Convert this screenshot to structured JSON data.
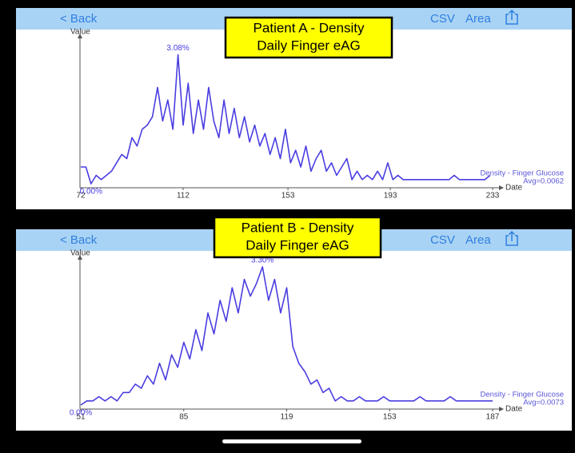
{
  "chart_data": [
    {
      "type": "line",
      "title": "Patient A - Density",
      "subtitle": "Daily Finger eAG",
      "nav": {
        "back": "< Back",
        "csv": "CSV",
        "area": "Area"
      },
      "xlabel": "Date",
      "ylabel": "Value",
      "x": [
        72,
        74,
        76,
        78,
        80,
        82,
        84,
        86,
        88,
        90,
        92,
        94,
        96,
        98,
        100,
        102,
        104,
        106,
        108,
        110,
        112,
        114,
        116,
        118,
        120,
        122,
        124,
        126,
        128,
        130,
        132,
        134,
        136,
        138,
        140,
        142,
        144,
        146,
        148,
        150,
        152,
        154,
        156,
        158,
        160,
        162,
        164,
        166,
        168,
        170,
        172,
        174,
        176,
        178,
        180,
        182,
        184,
        186,
        188,
        190,
        192,
        194,
        196,
        198,
        200,
        202,
        204,
        206,
        208,
        210,
        212,
        214,
        216,
        218,
        220,
        222,
        224,
        226,
        228,
        230,
        232
      ],
      "series": [
        {
          "name": "Density - Finger Glucose",
          "color": "#4a3ee0",
          "values": [
            0.4,
            0.4,
            0.0,
            0.2,
            0.1,
            0.2,
            0.3,
            0.5,
            0.7,
            0.6,
            1.1,
            0.9,
            1.3,
            1.4,
            1.6,
            2.3,
            1.5,
            2.0,
            1.3,
            3.08,
            1.4,
            2.4,
            1.2,
            2.0,
            1.3,
            2.3,
            1.5,
            1.1,
            2.0,
            1.2,
            1.8,
            1.1,
            1.6,
            1.0,
            1.4,
            0.9,
            1.2,
            0.7,
            1.1,
            0.6,
            1.3,
            0.5,
            0.8,
            0.4,
            0.9,
            0.3,
            0.6,
            0.8,
            0.3,
            0.5,
            0.2,
            0.4,
            0.6,
            0.1,
            0.3,
            0.1,
            0.2,
            0.1,
            0.3,
            0.1,
            0.5,
            0.1,
            0.2,
            0.1,
            0.1,
            0.1,
            0.1,
            0.1,
            0.1,
            0.1,
            0.1,
            0.1,
            0.1,
            0.2,
            0.1,
            0.1,
            0.1,
            0.1,
            0.1,
            0.1,
            0.2
          ]
        }
      ],
      "legend_note": "Avg=0.0062",
      "annotations": [
        {
          "text": "3.08%",
          "x": 110,
          "y": 3.08
        },
        {
          "text": "0.00%",
          "x": 76,
          "y": 0.0
        }
      ],
      "xlim": [
        72,
        233
      ],
      "xticks": [
        72,
        112,
        153,
        193,
        233
      ],
      "ylim": [
        0,
        3.3
      ]
    },
    {
      "type": "line",
      "title": "Patient B - Density",
      "subtitle": "Daily Finger eAG",
      "nav": {
        "back": "< Back",
        "csv": "CSV",
        "area": "Area"
      },
      "xlabel": "Date",
      "ylabel": "Value",
      "x": [
        51,
        53,
        55,
        57,
        59,
        61,
        63,
        65,
        67,
        69,
        71,
        73,
        75,
        77,
        79,
        81,
        83,
        85,
        87,
        89,
        91,
        93,
        95,
        97,
        99,
        101,
        103,
        105,
        107,
        109,
        111,
        113,
        115,
        117,
        119,
        121,
        123,
        125,
        127,
        129,
        131,
        133,
        135,
        137,
        139,
        141,
        143,
        145,
        147,
        149,
        151,
        153,
        155,
        157,
        159,
        161,
        163,
        165,
        167,
        169,
        171,
        173,
        175,
        177,
        179,
        181,
        183,
        185,
        187
      ],
      "series": [
        {
          "name": "Density - Finger Glucose",
          "color": "#4a3ee0",
          "values": [
            0.0,
            0.1,
            0.1,
            0.2,
            0.1,
            0.2,
            0.1,
            0.3,
            0.3,
            0.5,
            0.4,
            0.7,
            0.5,
            1.0,
            0.6,
            1.2,
            0.9,
            1.5,
            1.1,
            1.8,
            1.3,
            2.2,
            1.7,
            2.5,
            2.0,
            2.8,
            2.2,
            3.0,
            2.6,
            2.9,
            3.3,
            2.5,
            3.0,
            2.2,
            2.8,
            1.4,
            1.0,
            0.8,
            0.5,
            0.6,
            0.3,
            0.4,
            0.1,
            0.2,
            0.1,
            0.1,
            0.2,
            0.1,
            0.1,
            0.1,
            0.2,
            0.1,
            0.1,
            0.1,
            0.1,
            0.1,
            0.2,
            0.1,
            0.1,
            0.1,
            0.1,
            0.2,
            0.1,
            0.1,
            0.1,
            0.1,
            0.1,
            0.1,
            0.1
          ]
        }
      ],
      "legend_note": "Avg=0.0073",
      "annotations": [
        {
          "text": "3.30%",
          "x": 111,
          "y": 3.3
        },
        {
          "text": "0.00%",
          "x": 51,
          "y": 0.0
        }
      ],
      "xlim": [
        51,
        187
      ],
      "xticks": [
        51,
        85,
        119,
        153,
        187
      ],
      "ylim": [
        0,
        3.3
      ]
    }
  ]
}
